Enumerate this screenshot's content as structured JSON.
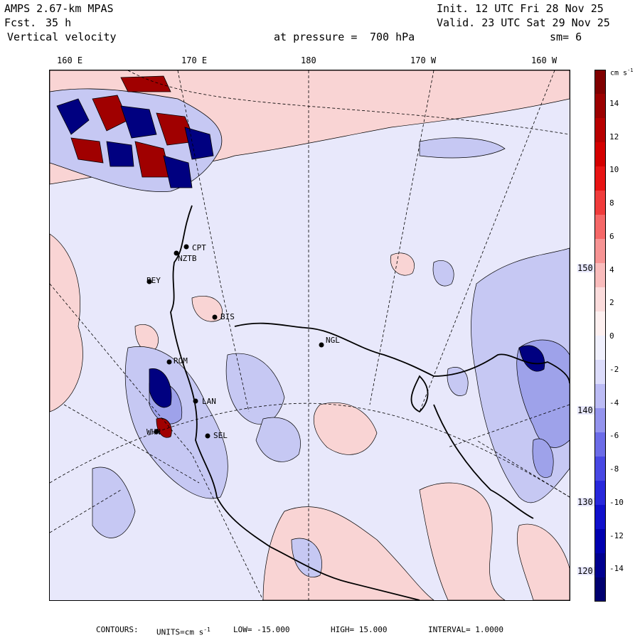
{
  "header": {
    "model": "AMPS 2.67-km MPAS",
    "fcst_label": "Fcst.",
    "fcst_value": "35 h",
    "field": "Vertical velocity",
    "init": "Init. 12 UTC Fri 28 Nov 25",
    "valid": "Valid. 23 UTC Sat 29 Nov 25",
    "pressure_label": "at pressure =",
    "pressure_value": "700 hPa",
    "smooth": "sm= 6"
  },
  "longitude_labels": [
    "160 E",
    "170 E",
    "180",
    "170 W",
    "160 W"
  ],
  "latitude_labels": [
    "150 W",
    "140 W",
    "130 W",
    "120 W"
  ],
  "stations": [
    {
      "id": "CPT"
    },
    {
      "id": "NZTB"
    },
    {
      "id": "BEY"
    },
    {
      "id": "BIS"
    },
    {
      "id": "NGL"
    },
    {
      "id": "ROM"
    },
    {
      "id": "LAN"
    },
    {
      "id": "SEL"
    },
    {
      "id": "WHN"
    }
  ],
  "colorbar": {
    "units": "cm s-1",
    "unit_base": "cm s",
    "unit_exp": "-1",
    "tick_labels": [
      "14",
      "12",
      "10",
      "8",
      "6",
      "4",
      "2",
      "0",
      "-2",
      "-4",
      "-6",
      "-8",
      "-10",
      "-12",
      "-14"
    ],
    "colors": [
      "#800000",
      "#9c0000",
      "#b80000",
      "#d40000",
      "#e81414",
      "#f03c3c",
      "#f56868",
      "#f79494",
      "#f9bcbc",
      "#fbdcdc",
      "#fdf0f0",
      "#f0f0fd",
      "#dcdcfb",
      "#bcbcf5",
      "#9494ee",
      "#6c6ce8",
      "#4848e4",
      "#2828dc",
      "#1010cc",
      "#0000b0",
      "#000090",
      "#000070"
    ]
  },
  "footer": {
    "contours": "CONTOURS:",
    "units_label": "UNITS=cm s",
    "units_exp": "-1",
    "low": "LOW= -15.000",
    "high": "HIGH= 15.000",
    "interval": "INTERVAL= 1.0000"
  },
  "map_colors": {
    "background": "#e8e8fb",
    "pink": "#f9d4d4",
    "blue_light": "#c6c8f3",
    "blue_mid": "#9ea2ea",
    "red_dark": "#a00000",
    "blue_dark": "#000080"
  }
}
